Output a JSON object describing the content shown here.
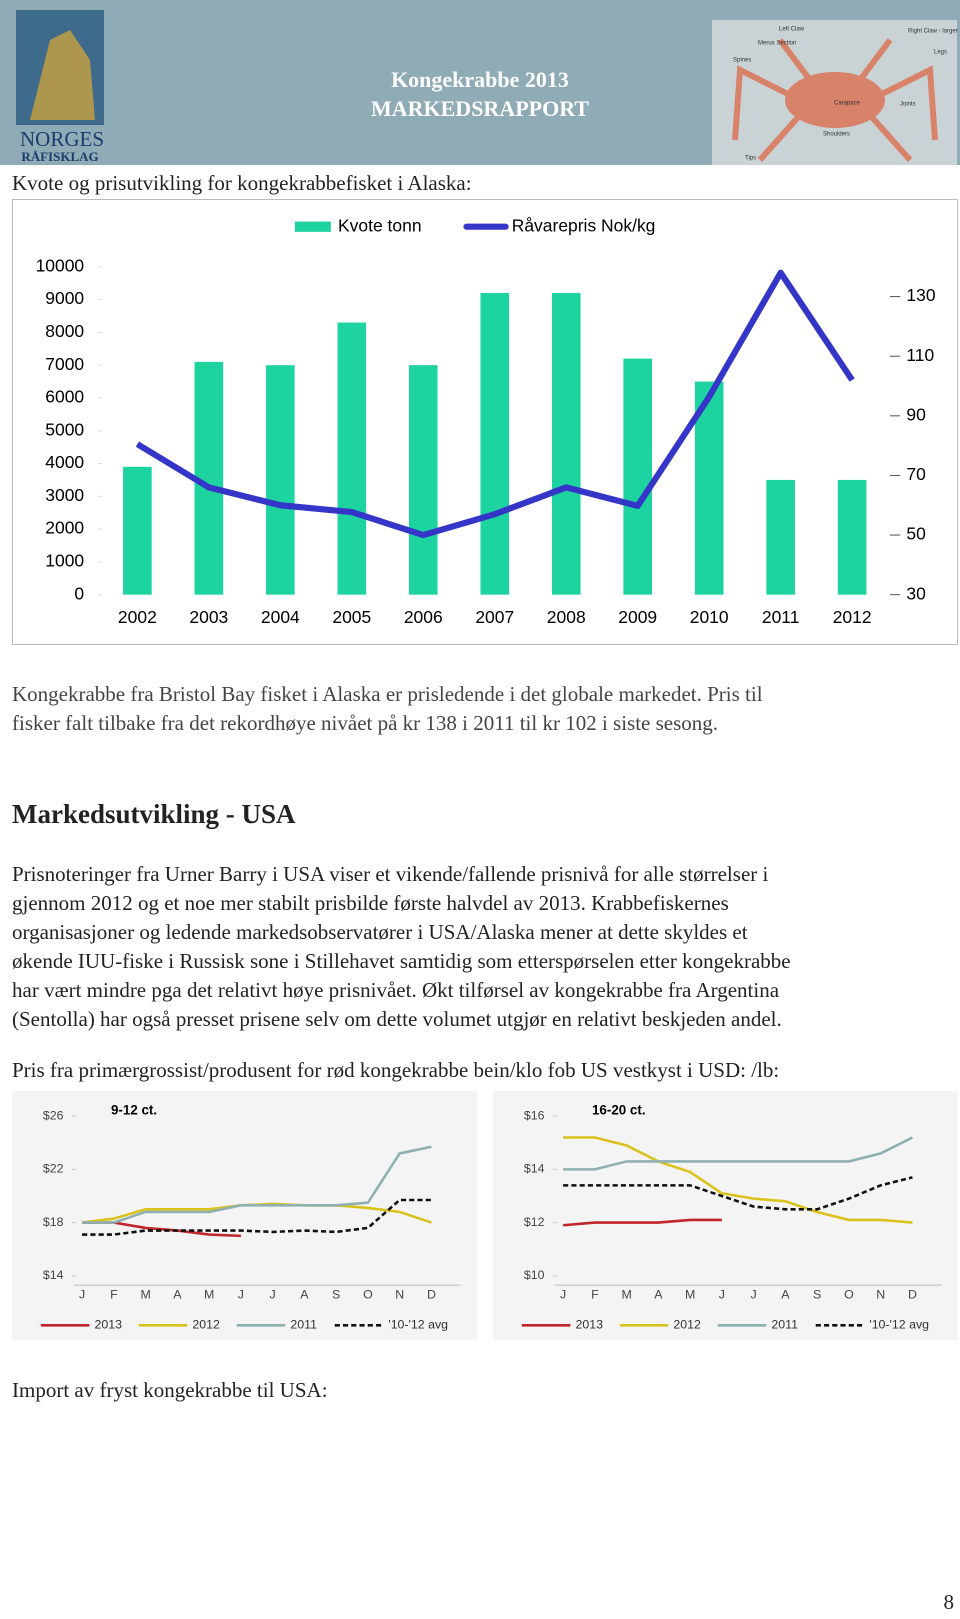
{
  "header": {
    "title": "Kongekrabbe 2013",
    "subtitle": "MARKEDSRAPPORT",
    "logo_lines": [
      "NORGES",
      "RÅFISKLAG"
    ],
    "crab_labels": [
      "Left Claw",
      "Right Claw - larger",
      "Merus Section",
      "Legs",
      "Spines",
      "Carapace",
      "Joints",
      "Shoulders",
      "Tips"
    ]
  },
  "captions": [
    "Kvote og prisutvikling for kongekrabbefisket i Alaska:",
    "Pris fra primærgrossist/produsent for rød kongekrabbe bein/klo fob US vestkyst i USD: /lb:",
    "Import av fryst kongekrabbe til USA:"
  ],
  "paragraphs": [
    {
      "lines": [
        "Kongekrabbe fra Bristol Bay fisket i Alaska er prisledende i det globale markedet. Pris til",
        "fisker falt tilbake fra det rekordhøye nivået på kr 138 i 2011 til kr 102 i siste sesong."
      ]
    },
    {
      "lines": [
        "Prisnoteringer fra Urner Barry i USA viser et vikende/fallende prisnivå for alle størrelser i",
        "gjennom 2012 og et noe mer stabilt prisbilde første halvdel av 2013. Krabbefiskernes",
        "organisasjoner og ledende markedsobservatører i USA/Alaska mener at dette skyldes et",
        "økende IUU-fiske i Russisk sone i Stillehavet samtidig som etterspørselen etter kongekrabbe",
        "har vært mindre pga det relativt høye prisnivået. Økt tilførsel av kongekrabbe fra Argentina",
        "(Sentolla) har også presset prisene selv om dette volumet utgjør en relativt beskjeden andel."
      ]
    }
  ],
  "heading": "Markedsutvikling - USA",
  "page_number": "8",
  "chart_data": [
    {
      "type": "combo",
      "categories": [
        "2002",
        "2003",
        "2004",
        "2005",
        "2006",
        "2007",
        "2008",
        "2009",
        "2010",
        "2011",
        "2012"
      ],
      "series": [
        {
          "name": "Kvote tonn",
          "color": "#1dd3a0",
          "values": [
            3900,
            7100,
            7000,
            8300,
            7000,
            9200,
            9200,
            7200,
            6500,
            3500,
            3500
          ]
        },
        {
          "name": "Råvarepris Nok/kg",
          "color": "#3535c8",
          "axis": "y2",
          "values": [
            80.5,
            66,
            60,
            57.7,
            50,
            57,
            66,
            59.8,
            96.4,
            138,
            102
          ]
        }
      ],
      "ylim": [
        0,
        10000
      ],
      "yticks": [
        0,
        1000,
        2000,
        3000,
        4000,
        5000,
        6000,
        7000,
        8000,
        9000,
        10000
      ],
      "y2lim": [
        30,
        140
      ],
      "y2ticks": [
        30,
        50,
        70,
        90,
        110,
        130
      ],
      "legend": "top"
    },
    {
      "type": "line",
      "title": "9-12 ct.",
      "categories": [
        "J",
        "F",
        "M",
        "A",
        "M",
        "J",
        "J",
        "A",
        "S",
        "O",
        "N",
        "D"
      ],
      "series": [
        {
          "name": "2013",
          "color": "#c0262b",
          "values": [
            18.0,
            18.0,
            17.6,
            17.4,
            17.1,
            17.0,
            null,
            null,
            null,
            null,
            null,
            null
          ]
        },
        {
          "name": "2012",
          "color": "#d9c21b",
          "values": [
            18.0,
            18.3,
            19.0,
            19.0,
            19.0,
            19.3,
            19.4,
            19.3,
            19.3,
            19.1,
            18.8,
            18.0
          ]
        },
        {
          "name": "2011",
          "color": "#8fb0b1",
          "values": [
            18.0,
            18.0,
            18.8,
            18.8,
            18.8,
            19.3,
            19.3,
            19.3,
            19.3,
            19.5,
            23.2,
            23.7
          ]
        },
        {
          "name": "'10-'12 avg",
          "color": "#111111",
          "dash": true,
          "values": [
            17.1,
            17.1,
            17.4,
            17.4,
            17.4,
            17.4,
            17.3,
            17.4,
            17.3,
            17.6,
            19.7,
            19.7
          ]
        }
      ],
      "ylim": [
        13.3,
        27.1
      ],
      "yticks": [
        {
          "value": 14,
          "label": "$14"
        },
        {
          "value": 18,
          "label": "$18"
        },
        {
          "value": 22,
          "label": "$22"
        },
        {
          "value": 26,
          "label": "$26"
        }
      ],
      "legend": "bottom"
    },
    {
      "type": "line",
      "title": "16-20 ct.",
      "categories": [
        "J",
        "F",
        "M",
        "A",
        "M",
        "J",
        "J",
        "A",
        "S",
        "O",
        "N",
        "D"
      ],
      "series": [
        {
          "name": "2013",
          "color": "#c0262b",
          "values": [
            11.9,
            12.0,
            12.0,
            12.0,
            12.1,
            12.1,
            null,
            null,
            null,
            null,
            null,
            null
          ]
        },
        {
          "name": "2012",
          "color": "#d9c21b",
          "values": [
            15.2,
            15.2,
            14.9,
            14.3,
            13.9,
            13.1,
            12.9,
            12.8,
            12.4,
            12.1,
            12.1,
            12.0
          ]
        },
        {
          "name": "2011",
          "color": "#8fb0b1",
          "values": [
            14.0,
            14.0,
            14.3,
            14.3,
            14.3,
            14.3,
            14.3,
            14.3,
            14.3,
            14.3,
            14.6,
            15.2
          ]
        },
        {
          "name": "'10-'12 avg",
          "color": "#111111",
          "dash": true,
          "values": [
            13.4,
            13.4,
            13.4,
            13.4,
            13.4,
            13.0,
            12.6,
            12.5,
            12.5,
            12.9,
            13.4,
            13.7
          ]
        }
      ],
      "ylim": [
        9.65,
        16.55
      ],
      "yticks": [
        {
          "value": 10,
          "label": "$10"
        },
        {
          "value": 12,
          "label": "$12"
        },
        {
          "value": 14,
          "label": "$14"
        },
        {
          "value": 16,
          "label": "$16"
        }
      ],
      "legend": "bottom"
    }
  ]
}
